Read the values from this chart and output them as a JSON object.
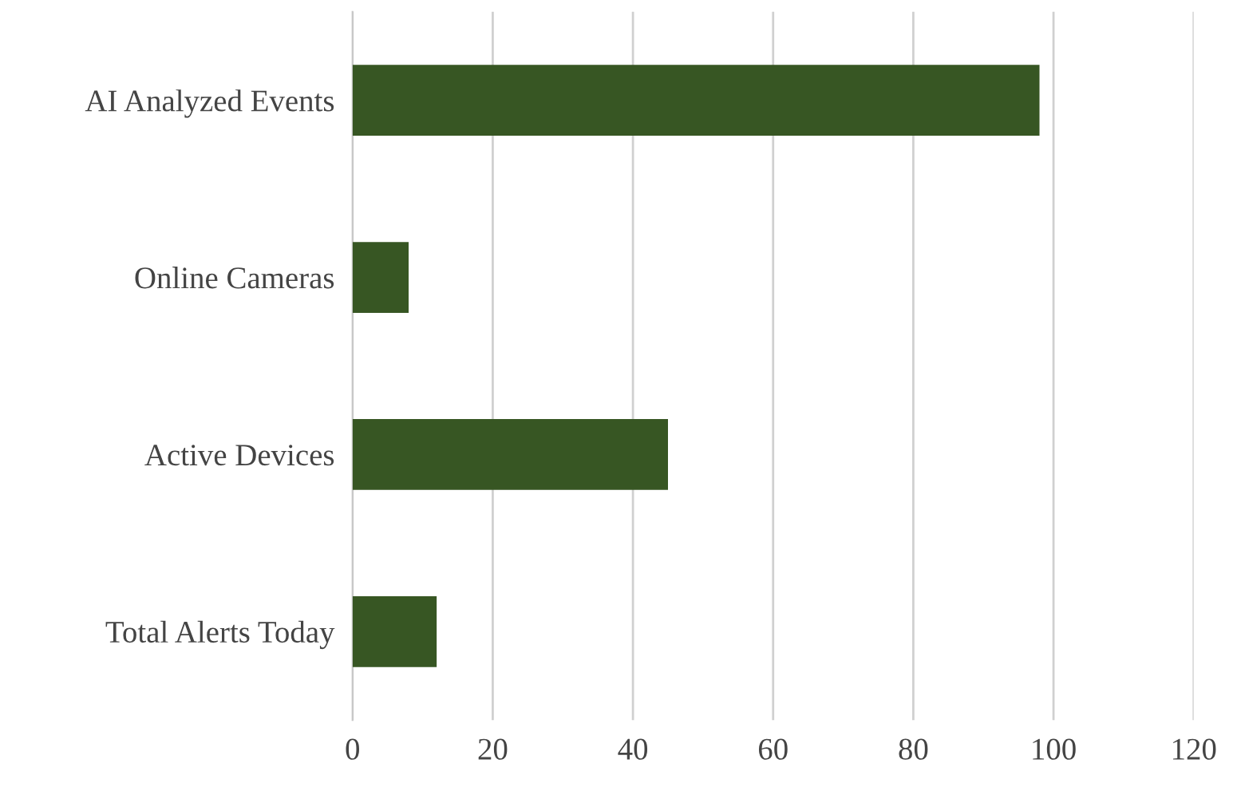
{
  "chart_data": {
    "type": "bar",
    "orientation": "horizontal",
    "categories": [
      "AI Analyzed Events",
      "Online Cameras",
      "Active Devices",
      "Total Alerts Today"
    ],
    "values": [
      98,
      8,
      45,
      12
    ],
    "color": "#375623",
    "xlim": [
      0,
      120
    ],
    "xticks": [
      0,
      20,
      40,
      60,
      80,
      100,
      120
    ],
    "grid": "x"
  }
}
